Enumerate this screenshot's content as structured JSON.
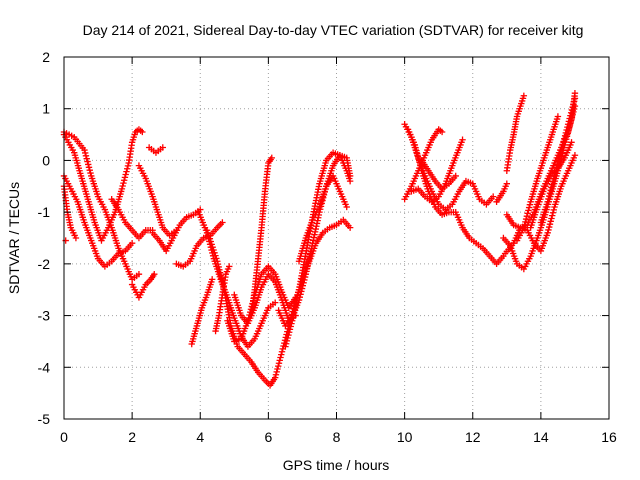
{
  "chart_data": {
    "type": "scatter",
    "title": "Day 214 of 2021, Sidereal Day-to-day VTEC variation (SDTVAR) for receiver kitg",
    "xlabel": "GPS time / hours",
    "ylabel": "SDTVAR / TECUs",
    "xlim": [
      0,
      16
    ],
    "ylim": [
      -5,
      2
    ],
    "xticks": [
      0,
      2,
      4,
      6,
      8,
      10,
      12,
      14,
      16
    ],
    "yticks": [
      -5,
      -4,
      -3,
      -2,
      -1,
      0,
      1,
      2
    ],
    "grid": true,
    "marker": "plus",
    "color": "#ff0000",
    "tracks": [
      [
        [
          0.0,
          0.55
        ],
        [
          0.3,
          0.45
        ],
        [
          0.6,
          0.2
        ],
        [
          0.8,
          -0.3
        ],
        [
          1.0,
          -0.7
        ],
        [
          1.2,
          -0.95
        ],
        [
          1.4,
          -1.3
        ],
        [
          1.6,
          -1.7
        ],
        [
          1.8,
          -2.0
        ],
        [
          2.0,
          -2.3
        ],
        [
          2.2,
          -2.2
        ]
      ],
      [
        [
          0.0,
          0.5
        ],
        [
          0.3,
          0.15
        ],
        [
          0.5,
          -0.3
        ],
        [
          0.7,
          -0.75
        ],
        [
          0.9,
          -1.2
        ],
        [
          1.1,
          -1.55
        ],
        [
          1.3,
          -1.3
        ],
        [
          1.5,
          -1.0
        ],
        [
          1.7,
          -0.55
        ],
        [
          1.9,
          -0.05
        ],
        [
          2.0,
          0.35
        ],
        [
          2.1,
          0.55
        ],
        [
          2.2,
          0.6
        ],
        [
          2.3,
          0.55
        ]
      ],
      [
        [
          0.0,
          -0.3
        ],
        [
          0.2,
          -0.55
        ],
        [
          0.4,
          -0.8
        ],
        [
          0.6,
          -1.2
        ],
        [
          0.8,
          -1.55
        ],
        [
          1.0,
          -1.9
        ],
        [
          1.2,
          -2.05
        ],
        [
          1.4,
          -1.95
        ],
        [
          1.6,
          -1.8
        ],
        [
          1.8,
          -1.75
        ],
        [
          2.0,
          -1.6
        ]
      ],
      [
        [
          0.0,
          -0.5
        ],
        [
          0.1,
          -1.0
        ],
        [
          0.2,
          -1.3
        ],
        [
          0.35,
          -1.5
        ]
      ],
      [
        [
          2.0,
          -2.4
        ],
        [
          2.2,
          -2.65
        ],
        [
          2.4,
          -2.4
        ],
        [
          2.55,
          -2.3
        ],
        [
          2.65,
          -2.2
        ]
      ],
      [
        [
          1.4,
          -0.75
        ],
        [
          1.6,
          -0.95
        ],
        [
          1.8,
          -1.2
        ],
        [
          2.0,
          -1.35
        ],
        [
          2.2,
          -1.5
        ],
        [
          2.4,
          -1.35
        ],
        [
          2.6,
          -1.35
        ]
      ],
      [
        [
          2.6,
          -1.4
        ],
        [
          2.8,
          -1.55
        ],
        [
          3.0,
          -1.75
        ],
        [
          3.2,
          -1.5
        ],
        [
          3.4,
          -1.25
        ],
        [
          3.6,
          -1.1
        ],
        [
          3.8,
          -1.05
        ],
        [
          4.0,
          -0.95
        ]
      ],
      [
        [
          2.2,
          -0.1
        ],
        [
          2.4,
          -0.35
        ],
        [
          2.6,
          -0.7
        ],
        [
          2.75,
          -1.0
        ],
        [
          2.9,
          -1.3
        ],
        [
          3.1,
          -1.45
        ],
        [
          3.3,
          -1.35
        ]
      ],
      [
        [
          2.5,
          0.25
        ],
        [
          2.7,
          0.15
        ],
        [
          2.9,
          0.25
        ]
      ],
      [
        [
          3.3,
          -2.0
        ],
        [
          3.5,
          -2.05
        ],
        [
          3.7,
          -1.95
        ],
        [
          3.9,
          -1.65
        ],
        [
          4.1,
          -1.5
        ],
        [
          4.3,
          -1.45
        ],
        [
          4.5,
          -1.3
        ],
        [
          4.65,
          -1.2
        ]
      ],
      [
        [
          3.95,
          -1.0
        ],
        [
          4.2,
          -1.4
        ],
        [
          4.4,
          -1.9
        ],
        [
          4.6,
          -2.3
        ],
        [
          4.8,
          -2.65
        ],
        [
          5.0,
          -3.05
        ],
        [
          5.2,
          -3.4
        ],
        [
          5.4,
          -3.6
        ],
        [
          5.6,
          -3.45
        ],
        [
          5.8,
          -3.15
        ],
        [
          6.0,
          -2.85
        ],
        [
          6.2,
          -2.75
        ]
      ],
      [
        [
          4.2,
          -1.35
        ],
        [
          4.5,
          -1.95
        ],
        [
          4.7,
          -2.5
        ],
        [
          4.9,
          -3.2
        ],
        [
          5.1,
          -3.6
        ],
        [
          5.3,
          -3.75
        ],
        [
          5.5,
          -3.9
        ],
        [
          5.7,
          -4.1
        ],
        [
          5.9,
          -4.25
        ],
        [
          6.05,
          -4.35
        ],
        [
          6.2,
          -4.2
        ],
        [
          6.4,
          -3.7
        ],
        [
          6.6,
          -3.2
        ],
        [
          6.8,
          -2.7
        ],
        [
          7.0,
          -2.3
        ],
        [
          7.2,
          -1.95
        ],
        [
          7.4,
          -1.6
        ],
        [
          7.6,
          -1.4
        ],
        [
          7.8,
          -1.3
        ],
        [
          8.0,
          -1.25
        ],
        [
          8.2,
          -1.15
        ],
        [
          8.4,
          -1.3
        ]
      ],
      [
        [
          4.45,
          -3.3
        ],
        [
          4.55,
          -3.0
        ],
        [
          4.65,
          -2.6
        ],
        [
          4.75,
          -2.2
        ],
        [
          4.85,
          -2.05
        ]
      ],
      [
        [
          3.75,
          -3.55
        ],
        [
          3.9,
          -3.2
        ],
        [
          4.05,
          -2.85
        ],
        [
          4.2,
          -2.6
        ],
        [
          4.35,
          -2.3
        ]
      ],
      [
        [
          5.0,
          -2.6
        ],
        [
          5.2,
          -3.0
        ],
        [
          5.4,
          -3.15
        ],
        [
          5.6,
          -2.85
        ],
        [
          5.8,
          -2.45
        ],
        [
          6.0,
          -2.2
        ],
        [
          6.2,
          -2.35
        ],
        [
          6.4,
          -2.7
        ],
        [
          6.6,
          -3.1
        ],
        [
          6.8,
          -3.0
        ]
      ],
      [
        [
          4.8,
          -3.1
        ],
        [
          5.0,
          -3.5
        ],
        [
          5.2,
          -3.45
        ],
        [
          5.4,
          -3.1
        ],
        [
          5.6,
          -2.6
        ],
        [
          5.8,
          -2.2
        ],
        [
          6.0,
          -2.05
        ],
        [
          6.2,
          -2.2
        ],
        [
          6.4,
          -2.55
        ],
        [
          6.6,
          -2.85
        ],
        [
          6.8,
          -2.65
        ]
      ],
      [
        [
          5.5,
          -3.0
        ],
        [
          5.6,
          -2.5
        ],
        [
          5.7,
          -1.9
        ],
        [
          5.8,
          -1.3
        ],
        [
          5.9,
          -0.6
        ],
        [
          6.0,
          -0.05
        ],
        [
          6.1,
          0.05
        ]
      ],
      [
        [
          6.3,
          -2.9
        ],
        [
          6.5,
          -3.2
        ],
        [
          6.7,
          -3.05
        ],
        [
          6.9,
          -2.7
        ],
        [
          7.1,
          -2.2
        ],
        [
          7.3,
          -1.6
        ],
        [
          7.5,
          -1.0
        ],
        [
          7.7,
          -0.5
        ],
        [
          7.9,
          -0.1
        ],
        [
          8.1,
          0.1
        ],
        [
          8.3,
          0.05
        ],
        [
          8.4,
          -0.3
        ]
      ],
      [
        [
          6.5,
          -3.6
        ],
        [
          6.7,
          -3.1
        ],
        [
          6.9,
          -2.5
        ],
        [
          7.1,
          -1.8
        ],
        [
          7.3,
          -1.1
        ],
        [
          7.5,
          -0.45
        ],
        [
          7.7,
          0.0
        ],
        [
          7.9,
          0.15
        ],
        [
          8.1,
          0.1
        ],
        [
          8.3,
          -0.2
        ],
        [
          8.4,
          -0.4
        ]
      ],
      [
        [
          6.9,
          -1.95
        ],
        [
          7.1,
          -1.5
        ],
        [
          7.3,
          -1.15
        ],
        [
          7.5,
          -0.9
        ],
        [
          7.7,
          -0.5
        ],
        [
          7.9,
          -0.3
        ],
        [
          8.1,
          -0.6
        ],
        [
          8.3,
          -0.9
        ]
      ],
      [
        [
          10.0,
          0.7
        ],
        [
          10.2,
          0.45
        ],
        [
          10.4,
          0.05
        ],
        [
          10.6,
          -0.3
        ],
        [
          10.8,
          -0.6
        ],
        [
          11.0,
          -0.85
        ],
        [
          11.2,
          -0.95
        ],
        [
          11.4,
          -0.85
        ],
        [
          11.6,
          -0.6
        ],
        [
          11.8,
          -0.4
        ],
        [
          12.0,
          -0.45
        ],
        [
          12.2,
          -0.75
        ],
        [
          12.4,
          -0.85
        ],
        [
          12.6,
          -0.7
        ]
      ],
      [
        [
          10.1,
          0.6
        ],
        [
          10.3,
          0.3
        ],
        [
          10.5,
          -0.2
        ],
        [
          10.7,
          -0.6
        ],
        [
          10.9,
          -0.9
        ],
        [
          11.1,
          -1.05
        ],
        [
          11.3,
          -1.0
        ],
        [
          11.5,
          -1.0
        ],
        [
          11.7,
          -1.3
        ],
        [
          11.9,
          -1.5
        ],
        [
          12.1,
          -1.6
        ],
        [
          12.3,
          -1.7
        ],
        [
          12.5,
          -1.85
        ],
        [
          12.7,
          -2.0
        ],
        [
          12.9,
          -1.85
        ]
      ],
      [
        [
          10.0,
          -0.75
        ],
        [
          10.2,
          -0.5
        ],
        [
          10.4,
          -0.2
        ],
        [
          10.6,
          0.1
        ],
        [
          10.8,
          0.4
        ],
        [
          11.0,
          0.6
        ],
        [
          11.1,
          0.55
        ]
      ],
      [
        [
          10.2,
          -0.6
        ],
        [
          10.4,
          -0.55
        ],
        [
          10.6,
          -0.7
        ],
        [
          10.8,
          -0.8
        ],
        [
          11.0,
          -0.7
        ],
        [
          11.2,
          -0.45
        ],
        [
          11.4,
          -0.1
        ],
        [
          11.55,
          0.15
        ],
        [
          11.7,
          0.4
        ]
      ],
      [
        [
          10.5,
          0.0
        ],
        [
          10.7,
          -0.2
        ],
        [
          10.9,
          -0.4
        ],
        [
          11.1,
          -0.55
        ],
        [
          11.3,
          -0.45
        ],
        [
          11.5,
          -0.3
        ]
      ],
      [
        [
          12.7,
          -0.8
        ],
        [
          12.9,
          -0.6
        ],
        [
          13.0,
          -0.45
        ]
      ],
      [
        [
          12.9,
          -1.5
        ],
        [
          13.1,
          -1.65
        ],
        [
          13.3,
          -2.0
        ],
        [
          13.5,
          -2.1
        ],
        [
          13.7,
          -1.85
        ],
        [
          13.9,
          -1.5
        ],
        [
          14.1,
          -1.1
        ],
        [
          14.3,
          -0.65
        ],
        [
          14.5,
          -0.2
        ],
        [
          14.7,
          0.3
        ],
        [
          14.9,
          0.8
        ],
        [
          15.0,
          1.3
        ]
      ],
      [
        [
          12.95,
          -1.8
        ],
        [
          13.2,
          -1.6
        ],
        [
          13.4,
          -1.3
        ],
        [
          13.6,
          -1.35
        ],
        [
          13.8,
          -1.6
        ],
        [
          14.0,
          -1.75
        ],
        [
          14.2,
          -1.4
        ],
        [
          14.4,
          -0.9
        ],
        [
          14.6,
          -0.5
        ],
        [
          14.8,
          -0.2
        ],
        [
          15.0,
          0.1
        ]
      ],
      [
        [
          13.0,
          -1.05
        ],
        [
          13.2,
          -1.25
        ],
        [
          13.4,
          -1.3
        ],
        [
          13.6,
          -1.25
        ],
        [
          13.8,
          -1.0
        ],
        [
          14.0,
          -0.65
        ],
        [
          14.2,
          -0.35
        ],
        [
          14.4,
          -0.05
        ],
        [
          14.6,
          0.25
        ],
        [
          14.8,
          0.55
        ],
        [
          15.0,
          1.05
        ]
      ],
      [
        [
          13.0,
          -0.2
        ],
        [
          13.1,
          0.2
        ],
        [
          13.2,
          0.5
        ],
        [
          13.3,
          0.85
        ],
        [
          13.4,
          1.05
        ],
        [
          13.5,
          1.25
        ]
      ],
      [
        [
          13.3,
          -1.55
        ],
        [
          13.5,
          -1.3
        ],
        [
          13.7,
          -0.8
        ],
        [
          13.9,
          -0.35
        ],
        [
          14.1,
          0.05
        ],
        [
          14.3,
          0.45
        ],
        [
          14.5,
          0.85
        ]
      ],
      [
        [
          14.0,
          -1.2
        ],
        [
          14.2,
          -0.8
        ],
        [
          14.4,
          -0.3
        ],
        [
          14.6,
          0.2
        ],
        [
          14.8,
          0.7
        ],
        [
          15.0,
          1.2
        ]
      ],
      [
        [
          13.7,
          -1.3
        ],
        [
          13.9,
          -0.9
        ],
        [
          14.1,
          -0.55
        ],
        [
          14.3,
          -0.3
        ],
        [
          14.5,
          -0.15
        ],
        [
          14.7,
          0.05
        ],
        [
          14.9,
          0.35
        ]
      ],
      [
        [
          0.05,
          -1.55
        ]
      ]
    ]
  }
}
